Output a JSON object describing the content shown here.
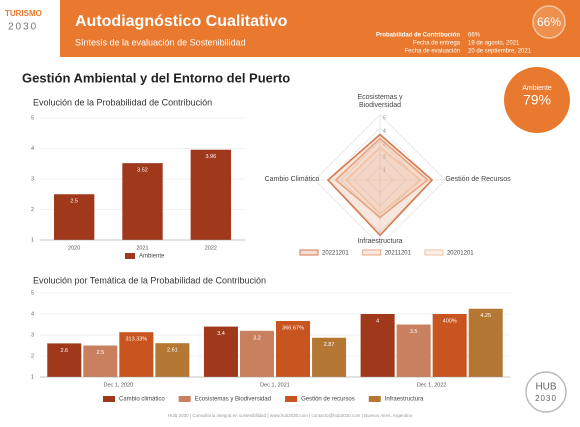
{
  "logo": {
    "top": "TURISMO",
    "bottom": "2030"
  },
  "header": {
    "title": "Autodiagnóstico Cualitativo",
    "subtitle": "Síntesis de la evaluación de Sostenibilidad",
    "badge": "66%",
    "details": [
      {
        "label": "Probabilidad de Contribución",
        "value": "66%"
      },
      {
        "label": "Fecha de entrega",
        "value": "19 de agosto, 2021"
      },
      {
        "label": "Fecha de evaluación",
        "value": "20 de septiembre, 2021"
      }
    ]
  },
  "section": {
    "title": "Gestión Ambiental y del Entorno del Puerto",
    "badge_label": "Ambiente",
    "badge_value": "79%"
  },
  "chart_data": [
    {
      "type": "bar",
      "title": "Evolución de la Probabilidad de Contribución",
      "categories": [
        "2020",
        "2021",
        "2022"
      ],
      "series": [
        {
          "name": "Ambiente",
          "color": "#a0381c",
          "values": [
            2.5,
            3.52,
            3.96
          ]
        }
      ],
      "ylim": [
        1,
        5
      ],
      "yticks": [
        1,
        2,
        3,
        4,
        5
      ],
      "grid": true
    },
    {
      "type": "radar",
      "axes": [
        "Ecosistemas y Biodiversidad",
        "Gestión de Recursos",
        "Infraestructura",
        "Cambio Climático"
      ],
      "series": [
        {
          "name": "20221201",
          "color": "#d57b50",
          "values": [
            3.5,
            4,
            4.25,
            4
          ]
        },
        {
          "name": "20211201",
          "color": "#e8a47f",
          "values": [
            3.2,
            3.6667,
            2.87,
            3.4
          ]
        },
        {
          "name": "20201201",
          "color": "#f0c2a3",
          "values": [
            2.5,
            3.1333,
            2.61,
            2.6
          ]
        }
      ],
      "rlim": [
        0,
        5
      ],
      "rticks": [
        1,
        2,
        3,
        4,
        5
      ]
    },
    {
      "type": "bar",
      "title": "Evolución por Temática de la Probabilidad de  Contribución",
      "categories": [
        "Dec 1, 2020",
        "Dec 1, 2021",
        "Dec 1, 2022"
      ],
      "series": [
        {
          "name": "Cambio climático",
          "color": "#a0381c",
          "values": [
            2.6,
            3.4,
            4
          ]
        },
        {
          "name": "Ecosistemas y Biodiversidad",
          "color": "#c9805e",
          "values": [
            2.5,
            3.2,
            3.5
          ]
        },
        {
          "name": "Gestión de recursos",
          "color": "#c8541f",
          "values": [
            3.1333,
            3.6667,
            4
          ],
          "value_labels": [
            "313.33%",
            "366.67%",
            "400%"
          ]
        },
        {
          "name": "Infraestructura",
          "color": "#b57734",
          "values": [
            2.61,
            2.87,
            4.25
          ]
        }
      ],
      "ylim": [
        1,
        5
      ],
      "yticks": [
        1,
        2,
        3,
        4,
        5
      ],
      "grid": true
    }
  ],
  "footer": "HUB 2030 | Consultoría integral en sostenibilidad | www.hub2030.com | contacto@hub2030.com | Buenos Aires, Argentina",
  "brand": {
    "top": "HUB",
    "bottom": "2030"
  }
}
